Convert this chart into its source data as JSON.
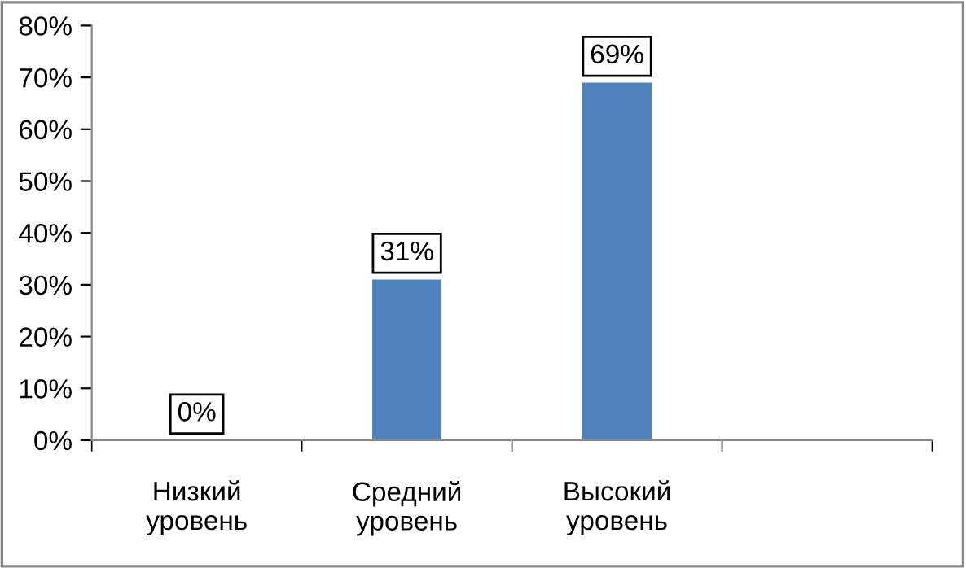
{
  "chart_data": {
    "type": "bar",
    "categories": [
      "Низкий\nуровень",
      "Средний\nуровень",
      "Высокий\nуровень",
      null
    ],
    "series": [
      {
        "color": "#4f81bd",
        "values": [
          0,
          31,
          69,
          null
        ]
      }
    ],
    "value_labels": [
      "0%",
      "31%",
      "69%",
      null
    ],
    "ylim": [
      0,
      80
    ],
    "yticks": [
      {
        "value": 0,
        "label": "0%"
      },
      {
        "value": 10,
        "label": "10%"
      },
      {
        "value": 20,
        "label": "20%"
      },
      {
        "value": 30,
        "label": "30%"
      },
      {
        "value": 40,
        "label": "40%"
      },
      {
        "value": 50,
        "label": "50%"
      },
      {
        "value": 60,
        "label": "60%"
      },
      {
        "value": 70,
        "label": "70%"
      },
      {
        "value": 80,
        "label": "80%"
      }
    ],
    "grid": false,
    "legend": false
  }
}
